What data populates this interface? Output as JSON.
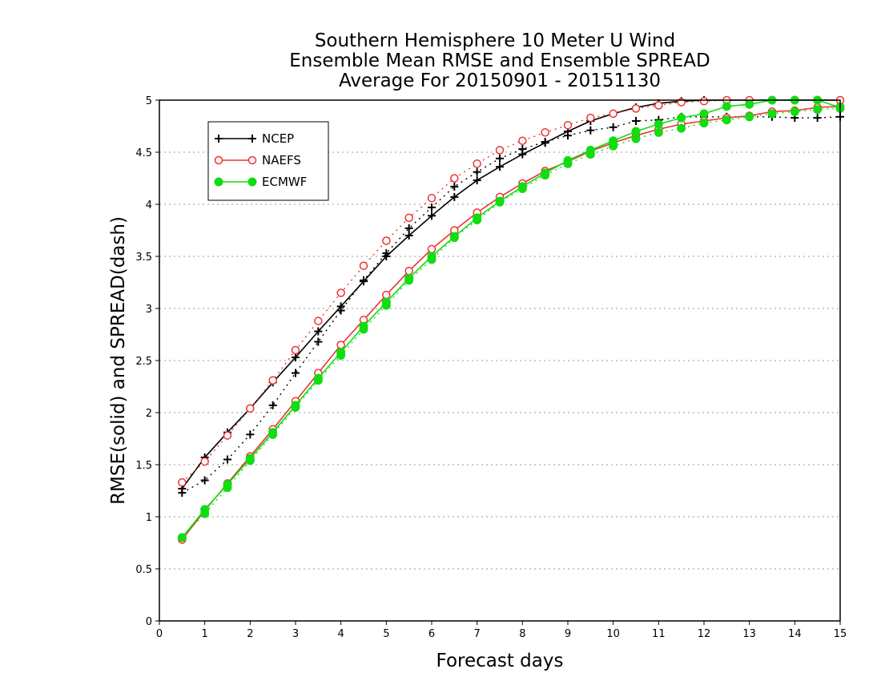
{
  "chart_data": {
    "type": "line",
    "title": [
      "Southern Hemisphere 10 Meter U Wind",
      "Ensemble Mean RMSE and Ensemble SPREAD",
      "Average For 20150901 - 20151130"
    ],
    "xlabel": "Forecast days",
    "ylabel": "RMSE(solid) and SPREAD(dash)",
    "xlim": [
      0,
      15
    ],
    "ylim": [
      0,
      5
    ],
    "xticks": [
      0,
      1,
      2,
      3,
      4,
      5,
      6,
      7,
      8,
      9,
      10,
      11,
      12,
      13,
      14,
      15
    ],
    "yticks": [
      0,
      0.5,
      1,
      1.5,
      2,
      2.5,
      3,
      3.5,
      4,
      4.5,
      5
    ],
    "ytick_labels": [
      "0",
      "0.5",
      "1",
      "1.5",
      "2",
      "2.5",
      "3",
      "3.5",
      "4",
      "4.5",
      "5"
    ],
    "grid": "horizontal dotted",
    "legend_position": "top-left",
    "x": [
      0.5,
      1,
      1.5,
      2,
      2.5,
      3,
      3.5,
      4,
      4.5,
      5,
      5.5,
      6,
      6.5,
      7,
      7.5,
      8,
      8.5,
      9,
      9.5,
      10,
      10.5,
      11,
      11.5,
      12,
      12.5,
      13,
      13.5,
      14,
      14.5,
      15
    ],
    "series": [
      {
        "name": "NCEP",
        "kind": "rmse",
        "color": "#000000",
        "marker": "plus",
        "values": [
          1.27,
          1.57,
          1.81,
          2.04,
          2.29,
          2.53,
          2.78,
          3.02,
          3.26,
          3.5,
          3.7,
          3.89,
          4.07,
          4.23,
          4.36,
          4.48,
          4.59,
          4.7,
          4.8,
          4.87,
          4.93,
          4.97,
          4.99,
          5.0,
          5.0,
          5.0,
          5.0,
          5.0,
          5.0,
          5.0
        ]
      },
      {
        "name": "NCEP",
        "kind": "spread",
        "color": "#000000",
        "marker": "plus",
        "values": [
          1.23,
          1.35,
          1.55,
          1.79,
          2.07,
          2.38,
          2.68,
          2.98,
          3.27,
          3.53,
          3.77,
          3.97,
          4.17,
          4.31,
          4.44,
          4.53,
          4.6,
          4.66,
          4.71,
          4.74,
          4.8,
          4.81,
          4.84,
          4.84,
          4.84,
          4.84,
          4.84,
          4.83,
          4.83,
          4.84
        ]
      },
      {
        "name": "NAEFS",
        "kind": "rmse",
        "color": "#ee3333",
        "marker": "circle-open",
        "values": [
          0.78,
          1.06,
          1.32,
          1.58,
          1.84,
          2.11,
          2.38,
          2.65,
          2.89,
          3.13,
          3.36,
          3.57,
          3.75,
          3.92,
          4.07,
          4.2,
          4.32,
          4.41,
          4.51,
          4.59,
          4.66,
          4.72,
          4.77,
          4.8,
          4.83,
          4.85,
          4.89,
          4.9,
          4.93,
          4.94
        ]
      },
      {
        "name": "NAEFS",
        "kind": "spread",
        "color": "#ee3333",
        "marker": "circle-open",
        "values": [
          1.33,
          1.53,
          1.78,
          2.04,
          2.31,
          2.6,
          2.88,
          3.15,
          3.41,
          3.65,
          3.87,
          4.06,
          4.25,
          4.39,
          4.52,
          4.61,
          4.69,
          4.76,
          4.83,
          4.87,
          4.92,
          4.95,
          4.98,
          4.99,
          5.0,
          5.0,
          5.0,
          5.0,
          5.0,
          5.0
        ]
      },
      {
        "name": "ECMWF",
        "kind": "rmse",
        "color": "#11dd11",
        "marker": "circle-filled",
        "values": [
          0.8,
          1.07,
          1.31,
          1.56,
          1.81,
          2.07,
          2.33,
          2.58,
          2.83,
          3.06,
          3.29,
          3.5,
          3.69,
          3.87,
          4.03,
          4.17,
          4.3,
          4.42,
          4.52,
          4.61,
          4.7,
          4.77,
          4.83,
          4.87,
          4.94,
          4.96,
          5.0,
          5.0,
          5.0,
          4.93
        ]
      },
      {
        "name": "ECMWF",
        "kind": "spread",
        "color": "#11dd11",
        "marker": "circle-filled",
        "values": [
          0.8,
          1.03,
          1.28,
          1.54,
          1.79,
          2.05,
          2.31,
          2.55,
          2.8,
          3.03,
          3.27,
          3.47,
          3.68,
          3.85,
          4.02,
          4.15,
          4.28,
          4.39,
          4.48,
          4.56,
          4.63,
          4.69,
          4.73,
          4.78,
          4.81,
          4.84,
          4.87,
          4.89,
          4.91,
          4.92
        ]
      }
    ],
    "legend": [
      {
        "name": "NCEP",
        "color": "#000000",
        "marker": "plus"
      },
      {
        "name": "NAEFS",
        "color": "#ee3333",
        "marker": "circle-open"
      },
      {
        "name": "ECMWF",
        "color": "#11dd11",
        "marker": "circle-filled"
      }
    ]
  }
}
